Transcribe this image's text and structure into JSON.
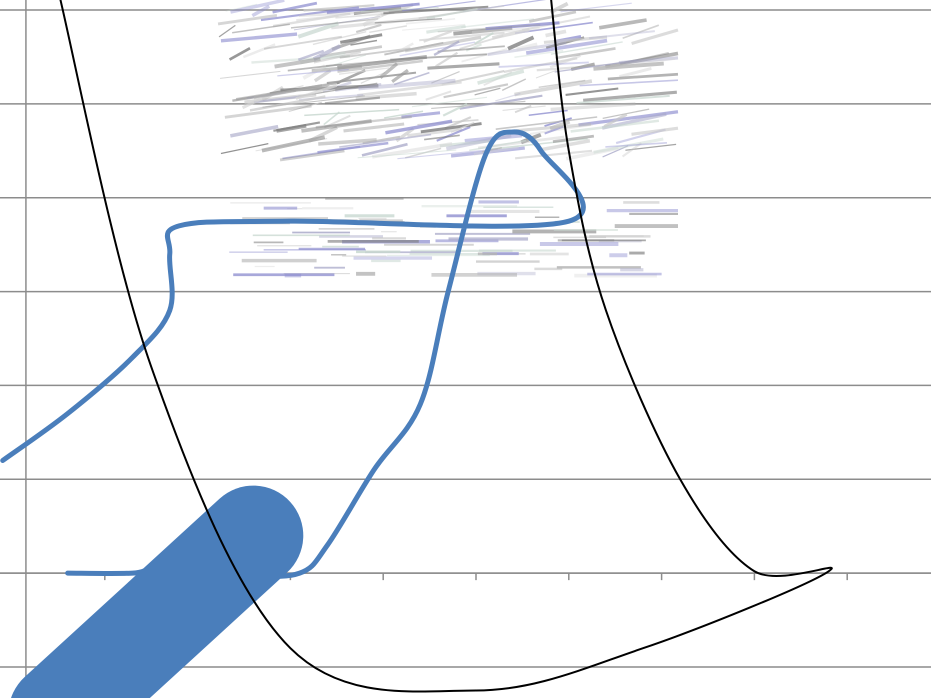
{
  "chart_data": {
    "type": "line",
    "title": "",
    "xlabel": "",
    "ylabel": "",
    "grid": true,
    "legend": "none",
    "xlim": [
      0,
      10
    ],
    "ylim": [
      -1,
      6
    ],
    "x_ticks": [
      1,
      2,
      3,
      4,
      5,
      6,
      7,
      8,
      9
    ],
    "y_gridlines": [
      -1,
      0,
      1,
      2,
      3,
      4,
      5,
      6
    ],
    "series": [
      {
        "color": "#4a7ebb",
        "points": [
          [
            -0.1,
            1.2
          ],
          [
            0.6,
            1.7
          ],
          [
            1.3,
            2.3
          ],
          [
            1.7,
            2.8
          ],
          [
            1.7,
            3.4
          ],
          [
            1.8,
            3.7
          ],
          [
            3.0,
            3.75
          ],
          [
            6.0,
            3.75
          ],
          [
            5.7,
            4.5
          ],
          [
            5.4,
            4.7
          ],
          [
            5.1,
            4.45
          ],
          [
            4.7,
            3.0
          ],
          [
            4.4,
            1.8
          ],
          [
            3.9,
            1.1
          ],
          [
            3.4,
            0.3
          ],
          [
            3.1,
            0.0
          ],
          [
            2.5,
            -0.02
          ],
          [
            1.6,
            0.05
          ],
          [
            1.3,
            0.0
          ],
          [
            0.6,
            0.0
          ]
        ]
      },
      {
        "color": "#4a7ebb",
        "style": "thick-stroke",
        "points": [
          [
            0.5,
            -1.5
          ],
          [
            2.6,
            0.4
          ]
        ]
      },
      {
        "color": "#000000",
        "points": [
          [
            0.5,
            6.2
          ],
          [
            1.5,
            2.2
          ],
          [
            3.0,
            -0.8
          ],
          [
            5.0,
            -1.25
          ],
          [
            6.8,
            -0.8
          ],
          [
            8.8,
            0.02
          ],
          [
            8.0,
            0.02
          ],
          [
            7.2,
            1.0
          ],
          [
            6.4,
            2.8
          ],
          [
            6.0,
            4.5
          ],
          [
            5.8,
            6.2
          ]
        ]
      }
    ],
    "y_axis_x": 0.15
  },
  "colors": {
    "grid": "#8c8c8c",
    "blue_series": "#4a7ebb",
    "black_series": "#000000",
    "background": "#ffffff"
  }
}
